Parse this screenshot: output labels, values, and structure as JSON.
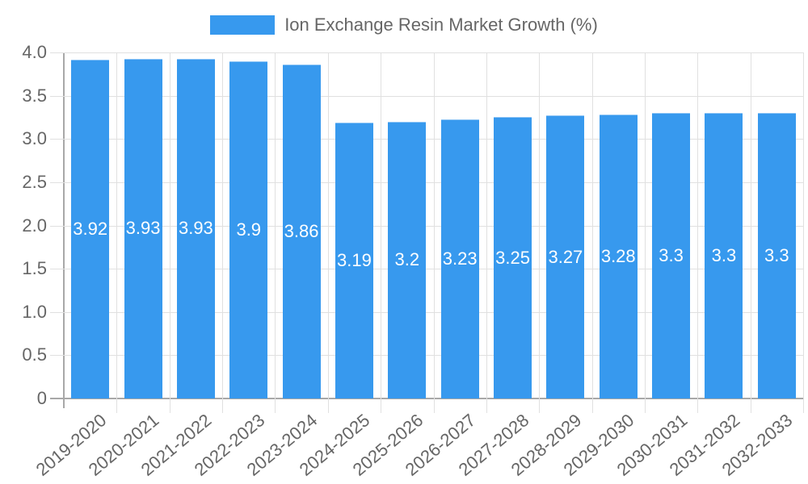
{
  "chart_data": {
    "type": "bar",
    "title": "",
    "legend": [
      {
        "label": "Ion Exchange Resin Market Growth (%)",
        "color": "#3799ee"
      }
    ],
    "legend_position": "top",
    "categories": [
      "2019-2020",
      "2020-2021",
      "2021-2022",
      "2022-2023",
      "2023-2024",
      "2024-2025",
      "2025-2026",
      "2026-2027",
      "2027-2028",
      "2028-2029",
      "2029-2030",
      "2030-2031",
      "2031-2032",
      "2032-2033"
    ],
    "series": [
      {
        "name": "Ion Exchange Resin Market Growth (%)",
        "values": [
          3.92,
          3.93,
          3.93,
          3.9,
          3.86,
          3.19,
          3.2,
          3.23,
          3.25,
          3.27,
          3.28,
          3.3,
          3.3,
          3.3
        ]
      }
    ],
    "data_labels": [
      "3.92",
      "3.93",
      "3.93",
      "3.9",
      "3.86",
      "3.19",
      "3.2",
      "3.23",
      "3.25",
      "3.27",
      "3.28",
      "3.3",
      "3.3",
      "3.3"
    ],
    "xlabel": "",
    "ylabel": "",
    "ylim": [
      0,
      4.0
    ],
    "yticks": [
      "0",
      "0.5",
      "1.0",
      "1.5",
      "2.0",
      "2.5",
      "3.0",
      "3.5",
      "4.0"
    ],
    "grid": true,
    "bar_color": "#3799ee"
  }
}
